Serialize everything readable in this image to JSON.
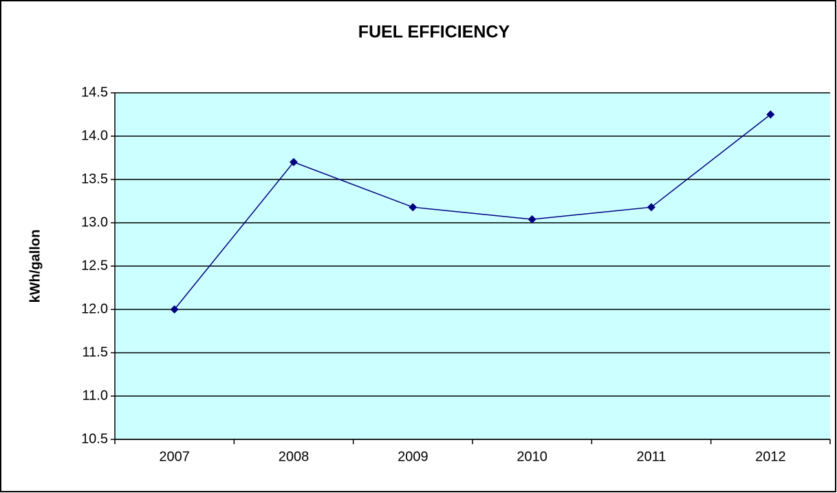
{
  "chart_data": {
    "type": "line",
    "title": "FUEL EFFICIENCY",
    "y_label": "kWh/gallon",
    "categories": [
      "2007",
      "2008",
      "2009",
      "2010",
      "2011",
      "2012"
    ],
    "series": [
      {
        "name": "kWh/gallon",
        "color": "#000080",
        "values": [
          12.0,
          13.7,
          13.18,
          13.04,
          13.18,
          14.25
        ]
      }
    ],
    "ylim": [
      10.5,
      14.5
    ],
    "yticks": [
      10.5,
      {
        "value": 11,
        "label": "11.0"
      },
      11.5,
      {
        "value": 12,
        "label": "12.0"
      },
      12.5,
      {
        "value": 13,
        "label": "13.0"
      },
      13.5,
      {
        "value": 14,
        "label": "14.0"
      },
      14.5
    ],
    "grid": true,
    "plot_background": "#ccffff"
  }
}
